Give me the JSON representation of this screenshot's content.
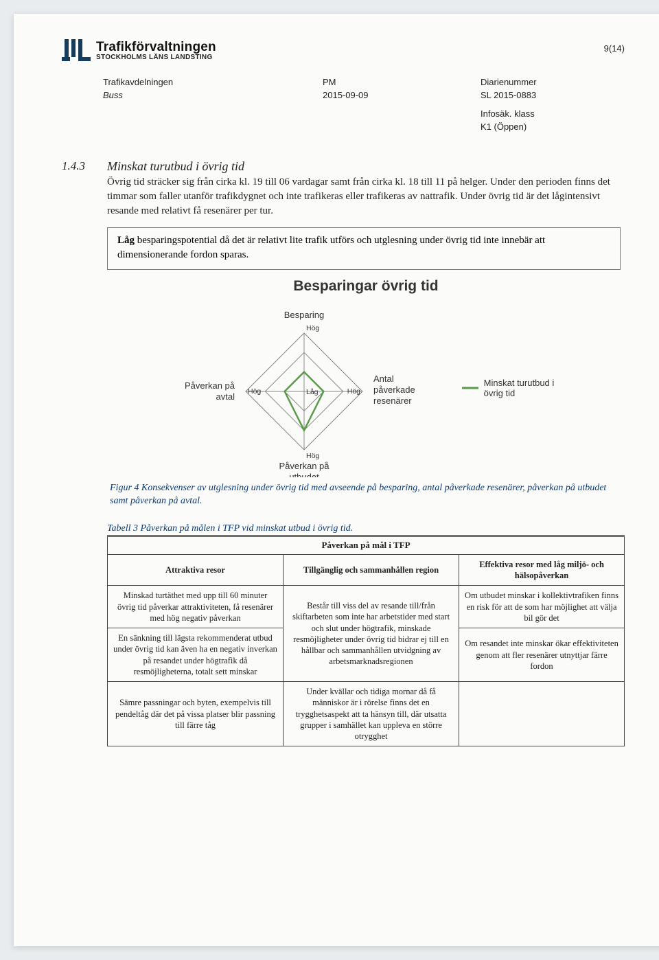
{
  "header": {
    "logo_title": "Trafikförvaltningen",
    "logo_sub": "STOCKHOLMS LÄNS LANDSTING",
    "page_number": "9(14)",
    "logo_color": "#163c5c"
  },
  "meta": {
    "dept": "Trafikavdelningen",
    "subdept": "Buss",
    "doc_type": "PM",
    "date": "2015-09-09",
    "diarie_label": "Diarienummer",
    "diarie_value": "SL 2015-0883",
    "infosak_label": "Infosäk. klass",
    "infosak_value": "K1 (Öppen)"
  },
  "section": {
    "number": "1.4.3",
    "title": "Minskat turutbud i övrig tid",
    "body": "Övrig tid sträcker sig från cirka kl. 19 till 06 vardagar samt från cirka kl. 18 till 11 på helger. Under den perioden finns det timmar som faller utanför trafikdygnet och inte trafikeras eller trafikeras av nattrafik. Under övrig tid är det lågintensivt resande med relativt få resenärer per tur.",
    "box_bold": "Låg",
    "box_rest": " besparingspotential då det är relativt lite trafik utförs och utglesning under övrig tid inte innebär att dimensionerande fordon sparas."
  },
  "chart": {
    "title": "Besparingar övrig tid",
    "type": "radar",
    "axes": [
      "Besparing",
      "Antal påverkade resenärer",
      "Påverkan på utbudet",
      "Påverkan på avtal"
    ],
    "axis_positions": {
      "Besparing": "top",
      "Antal påverkade resenärer": "right",
      "Påverkan på utbudet": "bottom",
      "Påverkan på avtal": "left"
    },
    "tick_labels": {
      "inner": "Låg",
      "outer": "Hög"
    },
    "rings": 3,
    "series": [
      {
        "name": "Minskat turutbud i övrig tid",
        "values": {
          "Besparing": 1,
          "Antal påverkade resenärer": 1,
          "Påverkan på utbudet": 2,
          "Påverkan på avtal": 1
        },
        "scale_max": 3,
        "stroke": "#5a9b4a",
        "stroke_width": 2.5
      }
    ],
    "grid_color": "#888888",
    "grid_width": 1,
    "background": "#fbfbf9",
    "axis_label_fontsize": 13,
    "tick_fontsize": 10.5,
    "legend_marker_color": "#5a9b4a"
  },
  "figure_caption": "Figur 4 Konsekvenser av utglesning under övrig tid med avseende på besparing, antal påverkade resenärer, påverkan på utbudet samt påverkan på avtal.",
  "table_caption": "Tabell 3 Påverkan på målen i TFP vid minskat utbud i övrig tid.",
  "table": {
    "span_header": "Påverkan på mål i TFP",
    "col_widths": [
      "34%",
      "34%",
      "32%"
    ],
    "columns": [
      "Attraktiva resor",
      "Tillgänglig och sammanhållen region",
      "Effektiva resor med låg miljö- och hälsopåverkan"
    ],
    "rows": [
      {
        "c1": "Minskad turtäthet med upp till 60 minuter övrig tid påverkar attraktiviteten, få resenärer med hög negativ påverkan",
        "c2": {
          "text": "Består till viss del av resande till/från skiftarbeten som inte har arbetstider med start och slut under högtrafik, minskade resmöjligheter under övrig tid bidrar ej till en hållbar och sammanhållen utvidgning av arbetsmarknadsregionen",
          "rowspan": 2
        },
        "c3": "Om utbudet minskar i kollektivtrafiken finns en risk för att de som har möjlighet att välja bil gör det"
      },
      {
        "c1": "En sänkning till lägsta rekommenderat utbud under övrig tid kan även ha en negativ inverkan på resandet under högtrafik då resmöjligheterna, totalt sett minskar",
        "c3": "Om resandet inte minskar ökar effektiviteten genom att fler resenärer utnyttjar färre fordon"
      },
      {
        "c1": "Sämre passningar och byten, exempelvis till pendeltåg där det på vissa platser blir passning till färre tåg",
        "c2": {
          "text": "Under kvällar och tidiga mornar då få människor är i rörelse finns det en trygghetsaspekt att ta hänsyn till, där utsatta grupper i samhället kan uppleva en större otrygghet"
        },
        "c3": ""
      }
    ]
  },
  "colors": {
    "caption_blue": "#0a3a73",
    "text": "#222222",
    "border": "#444444"
  }
}
